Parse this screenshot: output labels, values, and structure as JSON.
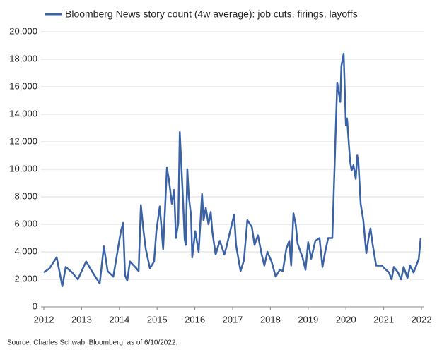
{
  "chart_data": {
    "type": "line",
    "series": [
      {
        "name": "Bloomberg News story count (4w average): job cuts, firings, layoffs",
        "color": "#3a62a7",
        "x": [
          2012.0,
          2012.15,
          2012.34,
          2012.49,
          2012.58,
          2012.75,
          2012.9,
          2013.12,
          2013.27,
          2013.48,
          2013.59,
          2013.69,
          2013.84,
          2014.04,
          2014.1,
          2014.15,
          2014.21,
          2014.28,
          2014.45,
          2014.51,
          2014.57,
          2014.64,
          2014.7,
          2014.81,
          2014.92,
          2014.98,
          2015.07,
          2015.16,
          2015.26,
          2015.31,
          2015.39,
          2015.45,
          2015.5,
          2015.56,
          2015.6,
          2015.63,
          2015.69,
          2015.73,
          2015.76,
          2015.8,
          2015.84,
          2015.9,
          2015.93,
          2016.01,
          2016.1,
          2016.19,
          2016.23,
          2016.29,
          2016.36,
          2016.42,
          2016.46,
          2016.55,
          2016.66,
          2016.78,
          2016.83,
          2017.04,
          2017.09,
          2017.21,
          2017.3,
          2017.39,
          2017.51,
          2017.58,
          2017.67,
          2017.77,
          2017.84,
          2017.92,
          2018.03,
          2018.14,
          2018.25,
          2018.33,
          2018.42,
          2018.5,
          2018.55,
          2018.61,
          2018.67,
          2018.72,
          2018.85,
          2018.93,
          2019.0,
          2019.08,
          2019.19,
          2019.3,
          2019.38,
          2019.45,
          2019.53,
          2019.64,
          2019.77,
          2019.85,
          2019.88,
          2019.94,
          2020.0,
          2020.03,
          2020.11,
          2020.15,
          2020.2,
          2020.26,
          2020.3,
          2020.33,
          2020.39,
          2020.46,
          2020.54,
          2020.6,
          2020.65,
          2020.71,
          2020.8,
          2020.95,
          2021.06,
          2021.14,
          2021.21,
          2021.27,
          2021.38,
          2021.46,
          2021.53,
          2021.63,
          2021.7,
          2021.79,
          2021.85,
          2021.93,
          2021.98
        ],
        "values": [
          2500,
          2800,
          3600,
          1500,
          2900,
          2500,
          2000,
          3300,
          2600,
          1700,
          4400,
          2600,
          2200,
          5500,
          6100,
          2300,
          1900,
          3300,
          2800,
          2600,
          7400,
          5500,
          4200,
          2800,
          3300,
          5500,
          7300,
          4200,
          10100,
          9300,
          7500,
          8500,
          5000,
          6100,
          12700,
          11000,
          7500,
          4900,
          4500,
          10000,
          8000,
          6600,
          3600,
          5500,
          4000,
          8200,
          6300,
          7200,
          6000,
          6900,
          5500,
          3800,
          4800,
          3800,
          4300,
          6700,
          4500,
          2600,
          3400,
          6300,
          5800,
          4500,
          5200,
          3800,
          3000,
          4000,
          3300,
          2200,
          2700,
          2600,
          4200,
          4800,
          3000,
          6800,
          6000,
          4600,
          3600,
          2700,
          4700,
          3500,
          4800,
          5000,
          2900,
          4000,
          5000,
          5000,
          16300,
          14900,
          17500,
          18400,
          13200,
          13700,
          10600,
          9900,
          10300,
          9300,
          11000,
          10500,
          7500,
          6300,
          3900,
          5000,
          5700,
          4500,
          3000,
          3000,
          2700,
          2500,
          2000,
          2900,
          2500,
          2000,
          2900,
          2100,
          3000,
          2500,
          2900,
          3500,
          5000
        ]
      }
    ],
    "xlim": [
      2012,
      2022
    ],
    "xticks": [
      2012,
      2013,
      2014,
      2015,
      2016,
      2017,
      2018,
      2019,
      2020,
      2021,
      2022
    ],
    "ylim": [
      0,
      20000
    ],
    "yticks": [
      0,
      {
        "value": 2000,
        "label": "2,000"
      },
      {
        "value": 4000,
        "label": "4,000"
      },
      {
        "value": 6000,
        "label": "6,000"
      },
      {
        "value": 8000,
        "label": "8,000"
      },
      {
        "value": 10000,
        "label": "10,000"
      },
      {
        "value": 12000,
        "label": "12,000"
      },
      {
        "value": 14000,
        "label": "14,000"
      },
      {
        "value": 16000,
        "label": "16,000"
      },
      {
        "value": 18000,
        "label": "18,000"
      },
      {
        "value": 20000,
        "label": "20,000"
      }
    ],
    "grid": true,
    "source": "Source: Charles Schwab, Bloomberg, as of 6/10/2022."
  }
}
